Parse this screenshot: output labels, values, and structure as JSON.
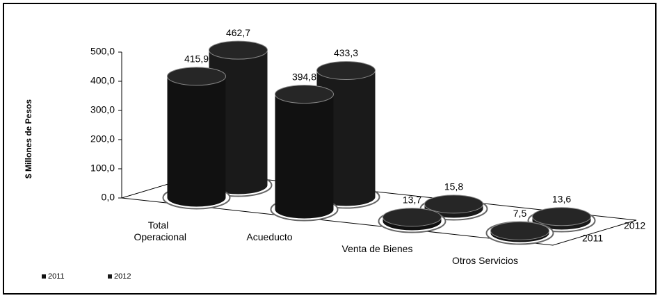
{
  "chart_data": {
    "type": "bar3d",
    "y_label": "$ Millones de Pesos",
    "categories": [
      "Total Operacional",
      "Acueducto",
      "Venta de Bienes",
      "Otros Servicios"
    ],
    "series": [
      {
        "name": "2011",
        "color": "#111111",
        "values": [
          415.9,
          394.8,
          13.7,
          7.5
        ],
        "value_labels": [
          "415,9",
          "394,8",
          "13,7",
          "7,5"
        ]
      },
      {
        "name": "2012",
        "color": "#1a1a1a",
        "values": [
          462.7,
          433.3,
          15.8,
          13.6
        ],
        "value_labels": [
          "462,7",
          "433,3",
          "15,8",
          "13,6"
        ]
      }
    ],
    "ylim": [
      0,
      500
    ],
    "yticks": [
      {
        "value": 0,
        "label": "0,0"
      },
      {
        "value": 100,
        "label": "100,0"
      },
      {
        "value": 200,
        "label": "200,0"
      },
      {
        "value": 300,
        "label": "300,0"
      },
      {
        "value": 400,
        "label": "400,0"
      },
      {
        "value": 500,
        "label": "500,0"
      }
    ],
    "legend": "bottom-left"
  }
}
